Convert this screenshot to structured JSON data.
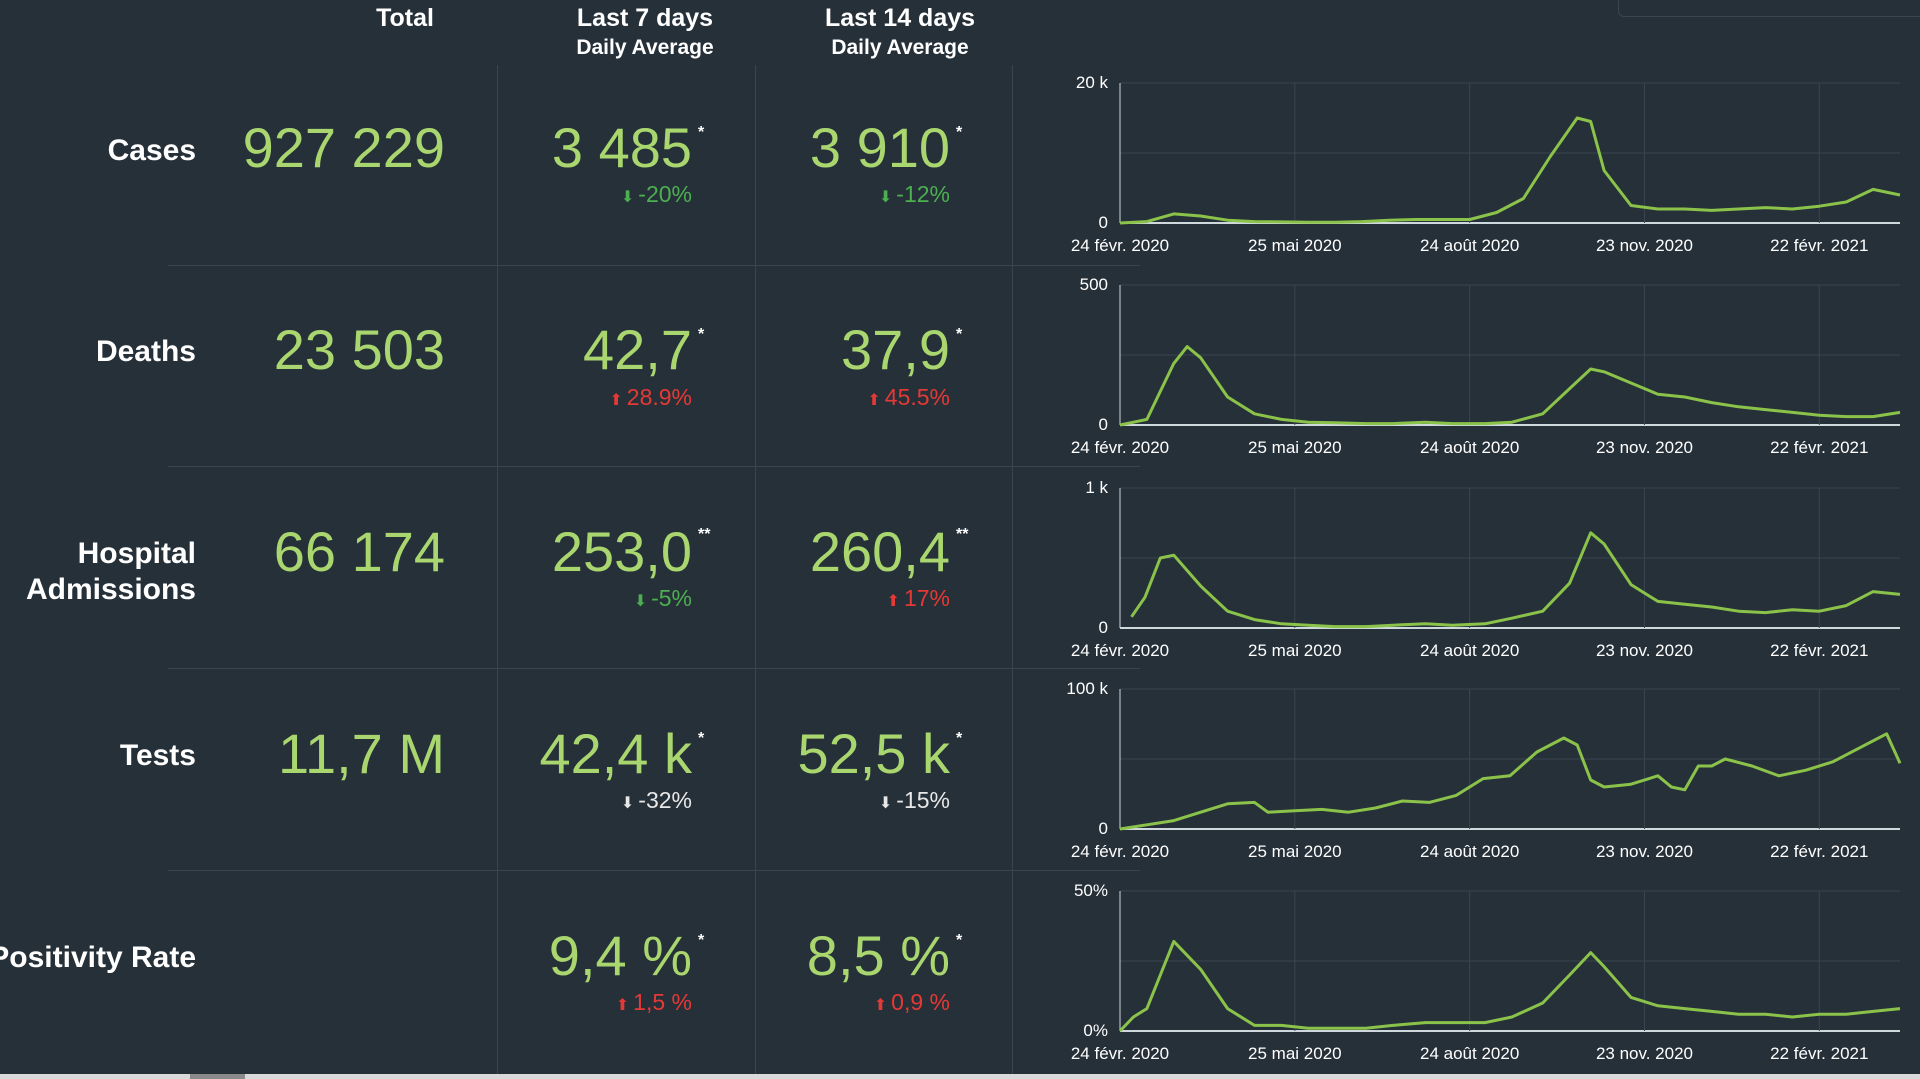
{
  "headers": {
    "total": "Total",
    "last7_main": "Last 7 days",
    "last7_sub": "Daily Average",
    "last14_main": "Last 14 days",
    "last14_sub": "Daily Average"
  },
  "rows": [
    {
      "label": "Cases",
      "total": "927 229",
      "last7": "3 485",
      "last7_star": "*",
      "last7_change": "-20%",
      "last7_dir": "down-green",
      "last14": "3 910",
      "last14_star": "*",
      "last14_change": "-12%",
      "last14_dir": "down-green"
    },
    {
      "label": "Deaths",
      "total": "23 503",
      "last7": "42,7",
      "last7_star": "*",
      "last7_change": "28.9%",
      "last7_dir": "up-red",
      "last14": "37,9",
      "last14_star": "*",
      "last14_change": "45.5%",
      "last14_dir": "up-red"
    },
    {
      "label_line1": "Hospital",
      "label_line2": "Admissions",
      "total": "66 174",
      "last7": "253,0",
      "last7_star": "**",
      "last7_change": "-5%",
      "last7_dir": "down-green",
      "last14": "260,4",
      "last14_star": "**",
      "last14_change": "17%",
      "last14_dir": "up-red"
    },
    {
      "label": "Tests",
      "total": "11,7 M",
      "last7": "42,4 k",
      "last7_star": "*",
      "last7_change": "-32%",
      "last7_dir": "down-white",
      "last14": "52,5 k",
      "last14_star": "*",
      "last14_change": "-15%",
      "last14_dir": "down-white"
    },
    {
      "label": "Positivity Rate",
      "total": "",
      "last7": "9,4 %",
      "last7_star": "*",
      "last7_change": "1,5 %",
      "last7_dir": "up-red",
      "last14": "8,5 %",
      "last14_star": "*",
      "last14_change": "0,9 %",
      "last14_dir": "up-red"
    }
  ],
  "colors": {
    "background": "#263039",
    "value_green": "#a9d66e",
    "line_green": "#8bc34a",
    "down_green": "#4caf50",
    "up_red": "#e53935",
    "grid": "#3a4550"
  },
  "icons": {
    "down": "arrow-down-icon",
    "up": "arrow-up-icon"
  },
  "chart_data": [
    {
      "type": "line",
      "ytick_labels": [
        "0",
        "20 k"
      ],
      "ylim": [
        0,
        20000
      ],
      "xtick_labels": [
        "24 févr. 2020",
        "25 mai 2020",
        "24 août 2020",
        "23 nov. 2020",
        "22 févr. 2021"
      ],
      "x": [
        "2020-02-24",
        "2020-03-09",
        "2020-03-23",
        "2020-04-06",
        "2020-04-20",
        "2020-05-04",
        "2020-05-18",
        "2020-06-01",
        "2020-06-15",
        "2020-06-29",
        "2020-07-13",
        "2020-07-27",
        "2020-08-10",
        "2020-08-24",
        "2020-09-07",
        "2020-09-21",
        "2020-10-05",
        "2020-10-19",
        "2020-10-26",
        "2020-11-02",
        "2020-11-16",
        "2020-11-30",
        "2020-12-14",
        "2020-12-28",
        "2021-01-11",
        "2021-01-25",
        "2021-02-08",
        "2021-02-22",
        "2021-03-08",
        "2021-03-22",
        "2021-04-05"
      ],
      "series": [
        {
          "values": [
            0,
            200,
            1300,
            1000,
            400,
            200,
            150,
            100,
            100,
            200,
            400,
            500,
            500,
            500,
            1500,
            3500,
            9500,
            15000,
            14500,
            7500,
            2500,
            2000,
            2000,
            1800,
            2000,
            2200,
            2000,
            2400,
            3000,
            4800,
            4000
          ]
        }
      ],
      "grid": true
    },
    {
      "type": "line",
      "ytick_labels": [
        "0",
        "500"
      ],
      "ylim": [
        0,
        500
      ],
      "xtick_labels": [
        "24 févr. 2020",
        "25 mai 2020",
        "24 août 2020",
        "23 nov. 2020",
        "22 févr. 2021"
      ],
      "x": [
        "2020-02-24",
        "2020-03-09",
        "2020-03-16",
        "2020-03-23",
        "2020-03-30",
        "2020-04-06",
        "2020-04-20",
        "2020-05-04",
        "2020-05-18",
        "2020-06-01",
        "2020-06-15",
        "2020-07-01",
        "2020-07-15",
        "2020-08-01",
        "2020-08-15",
        "2020-09-01",
        "2020-09-15",
        "2020-10-01",
        "2020-10-15",
        "2020-10-26",
        "2020-11-02",
        "2020-11-16",
        "2020-11-30",
        "2020-12-14",
        "2020-12-28",
        "2021-01-11",
        "2021-01-25",
        "2021-02-08",
        "2021-02-22",
        "2021-03-08",
        "2021-03-22",
        "2021-04-05"
      ],
      "series": [
        {
          "values": [
            0,
            20,
            120,
            220,
            280,
            240,
            100,
            40,
            20,
            10,
            8,
            5,
            5,
            10,
            5,
            5,
            10,
            40,
            130,
            200,
            190,
            150,
            110,
            100,
            80,
            65,
            55,
            45,
            35,
            30,
            30,
            45
          ]
        }
      ],
      "grid": true
    },
    {
      "type": "line",
      "ytick_labels": [
        "0",
        "1 k"
      ],
      "ylim": [
        0,
        1000
      ],
      "xtick_labels": [
        "24 févr. 2020",
        "25 mai 2020",
        "24 août 2020",
        "23 nov. 2020",
        "22 févr. 2021"
      ],
      "x": [
        "2020-03-01",
        "2020-03-08",
        "2020-03-16",
        "2020-03-23",
        "2020-04-06",
        "2020-04-20",
        "2020-05-04",
        "2020-05-18",
        "2020-06-01",
        "2020-06-15",
        "2020-07-01",
        "2020-07-15",
        "2020-08-01",
        "2020-08-15",
        "2020-09-01",
        "2020-09-15",
        "2020-10-01",
        "2020-10-15",
        "2020-10-26",
        "2020-11-02",
        "2020-11-16",
        "2020-11-30",
        "2020-12-14",
        "2020-12-28",
        "2021-01-11",
        "2021-01-25",
        "2021-02-08",
        "2021-02-22",
        "2021-03-08",
        "2021-03-22",
        "2021-04-05"
      ],
      "series": [
        {
          "values": [
            80,
            220,
            500,
            520,
            300,
            120,
            60,
            30,
            20,
            10,
            10,
            20,
            30,
            20,
            30,
            70,
            120,
            320,
            680,
            600,
            310,
            190,
            170,
            150,
            120,
            110,
            130,
            120,
            160,
            260,
            240
          ]
        }
      ],
      "grid": true
    },
    {
      "type": "line",
      "ytick_labels": [
        "0",
        "100 k"
      ],
      "ylim": [
        0,
        100000
      ],
      "xtick_labels": [
        "24 févr. 2020",
        "25 mai 2020",
        "24 août 2020",
        "23 nov. 2020",
        "22 févr. 2021"
      ],
      "x": [
        "2020-02-24",
        "2020-03-09",
        "2020-03-23",
        "2020-04-06",
        "2020-04-20",
        "2020-05-04",
        "2020-05-11",
        "2020-05-25",
        "2020-06-08",
        "2020-06-22",
        "2020-07-06",
        "2020-07-20",
        "2020-08-03",
        "2020-08-17",
        "2020-08-31",
        "2020-09-14",
        "2020-09-28",
        "2020-10-12",
        "2020-10-19",
        "2020-10-26",
        "2020-11-02",
        "2020-11-16",
        "2020-11-30",
        "2020-12-07",
        "2020-12-14",
        "2020-12-21",
        "2020-12-28",
        "2021-01-04",
        "2021-01-18",
        "2021-02-01",
        "2021-02-15",
        "2021-03-01",
        "2021-03-15",
        "2021-03-29",
        "2021-04-05"
      ],
      "series": [
        {
          "values": [
            0,
            3000,
            6000,
            12000,
            18000,
            19000,
            12000,
            13000,
            14000,
            12000,
            15000,
            20000,
            19000,
            24000,
            36000,
            38000,
            55000,
            65000,
            60000,
            35000,
            30000,
            32000,
            38000,
            30000,
            28000,
            45000,
            45000,
            50000,
            45000,
            38000,
            42000,
            48000,
            58000,
            68000,
            47000
          ]
        }
      ],
      "grid": true
    },
    {
      "type": "line",
      "ytick_labels": [
        "0%",
        "50%"
      ],
      "ylim": [
        0,
        50
      ],
      "xtick_labels": [
        "24 févr. 2020",
        "25 mai 2020",
        "24 août 2020",
        "23 nov. 2020",
        "22 févr. 2021"
      ],
      "x": [
        "2020-02-24",
        "2020-03-02",
        "2020-03-09",
        "2020-03-23",
        "2020-04-06",
        "2020-04-20",
        "2020-05-04",
        "2020-05-18",
        "2020-06-01",
        "2020-06-15",
        "2020-07-01",
        "2020-07-15",
        "2020-08-01",
        "2020-08-15",
        "2020-09-01",
        "2020-09-15",
        "2020-10-01",
        "2020-10-15",
        "2020-10-26",
        "2020-11-02",
        "2020-11-16",
        "2020-11-30",
        "2020-12-14",
        "2020-12-28",
        "2021-01-11",
        "2021-01-25",
        "2021-02-08",
        "2021-02-22",
        "2021-03-08",
        "2021-03-22",
        "2021-04-05"
      ],
      "series": [
        {
          "values": [
            0,
            5,
            8,
            32,
            22,
            8,
            2,
            2,
            1,
            1,
            1,
            2,
            3,
            3,
            3,
            5,
            10,
            20,
            28,
            23,
            12,
            9,
            8,
            7,
            6,
            6,
            5,
            6,
            6,
            7,
            8
          ]
        }
      ],
      "grid": true
    }
  ]
}
